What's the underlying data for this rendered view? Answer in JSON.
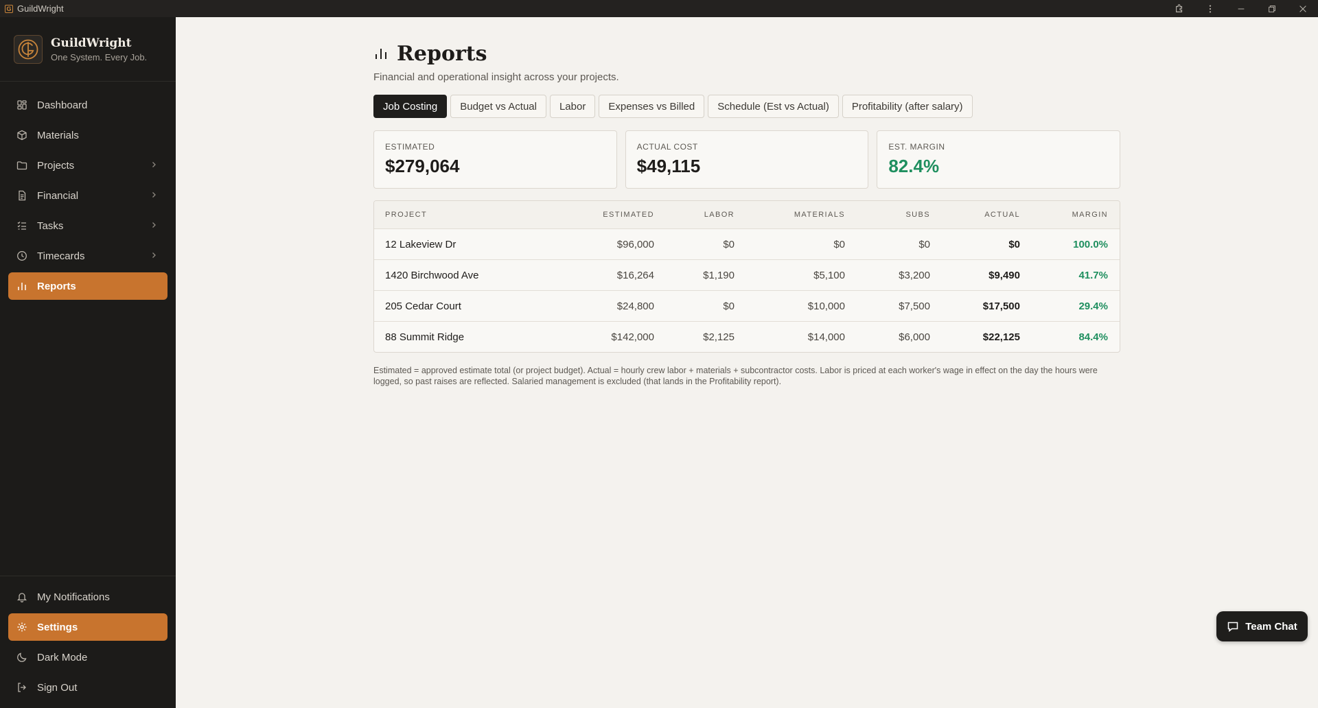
{
  "window": {
    "title": "GuildWright"
  },
  "brand": {
    "name": "GuildWright",
    "tagline": "One System. Every Job.",
    "accent": "#c8742e"
  },
  "nav": {
    "items": [
      {
        "label": "Dashboard",
        "icon": "dashboard-icon"
      },
      {
        "label": "Materials",
        "icon": "box-icon"
      },
      {
        "label": "Projects",
        "icon": "folder-icon"
      },
      {
        "label": "Financial",
        "icon": "document-icon"
      },
      {
        "label": "Tasks",
        "icon": "list-icon"
      },
      {
        "label": "Timecards",
        "icon": "clock-icon"
      },
      {
        "label": "Reports",
        "icon": "bar-chart-icon"
      }
    ],
    "bottom": [
      {
        "label": "My Notifications",
        "icon": "bell-icon"
      },
      {
        "label": "Settings",
        "icon": "gear-icon"
      },
      {
        "label": "Dark Mode",
        "icon": "moon-icon"
      },
      {
        "label": "Sign Out",
        "icon": "sign-out-icon"
      }
    ]
  },
  "page": {
    "title": "Reports",
    "subtitle": "Financial and operational insight across your projects."
  },
  "tabs": [
    {
      "label": "Job Costing"
    },
    {
      "label": "Budget vs Actual"
    },
    {
      "label": "Labor"
    },
    {
      "label": "Expenses vs Billed"
    },
    {
      "label": "Schedule (Est vs Actual)"
    },
    {
      "label": "Profitability (after salary)"
    }
  ],
  "summary": {
    "estimated": {
      "label": "ESTIMATED",
      "value": "$279,064"
    },
    "actual": {
      "label": "ACTUAL COST",
      "value": "$49,115"
    },
    "margin": {
      "label": "EST. MARGIN",
      "value": "82.4%",
      "color": "#1f8f5f"
    }
  },
  "table": {
    "headers": [
      "PROJECT",
      "ESTIMATED",
      "LABOR",
      "MATERIALS",
      "SUBS",
      "ACTUAL",
      "MARGIN"
    ],
    "rows": [
      [
        "12 Lakeview Dr",
        "$96,000",
        "$0",
        "$0",
        "$0",
        "$0",
        "100.0%"
      ],
      [
        "1420 Birchwood Ave",
        "$16,264",
        "$1,190",
        "$5,100",
        "$3,200",
        "$9,490",
        "41.7%"
      ],
      [
        "205 Cedar Court",
        "$24,800",
        "$0",
        "$10,000",
        "$7,500",
        "$17,500",
        "29.4%"
      ],
      [
        "88 Summit Ridge",
        "$142,000",
        "$2,125",
        "$14,000",
        "$6,000",
        "$22,125",
        "84.4%"
      ]
    ]
  },
  "footnote": "Estimated = approved estimate total (or project budget). Actual = hourly crew labor + materials + subcontractor costs. Labor is priced at each worker's wage in effect on the day the hours were logged, so past raises are reflected. Salaried management is excluded (that lands in the Profitability report).",
  "chat": {
    "label": "Team Chat"
  }
}
